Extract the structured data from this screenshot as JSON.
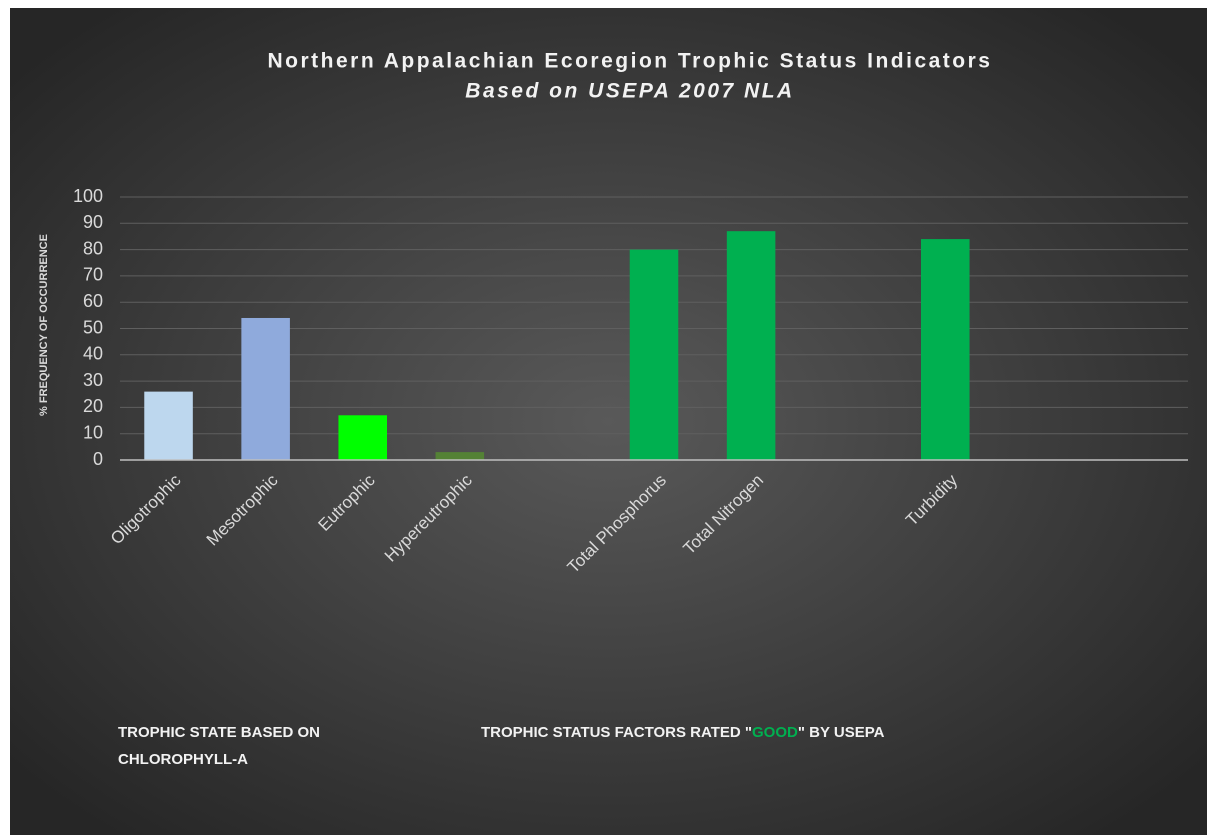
{
  "chart_data": {
    "type": "bar",
    "title": "Northern Appalachian Ecoregion Trophic Status Indicators",
    "subtitle": "Based on USEPA 2007 NLA",
    "y_label": "% FREQUENCY OF OCCURRENCE",
    "categories": [
      "Oligotrophic",
      "Mesotrophic",
      "Eutrophic",
      "Hypereutrophic",
      null,
      "Total Phosphorus",
      "Total Nitrogen",
      null,
      "Turbidity",
      null,
      null
    ],
    "values": [
      26,
      54,
      17,
      3,
      null,
      80,
      87,
      null,
      84,
      null,
      null
    ],
    "colors": [
      "#bdd7ee",
      "#8faadc",
      "#00ff00",
      "#548235",
      null,
      "#00b050",
      "#00b050",
      null,
      "#00b050",
      null,
      null
    ],
    "ylim": [
      0,
      100
    ],
    "yticks": [
      0,
      10,
      20,
      30,
      40,
      50,
      60,
      70,
      80,
      90,
      100
    ],
    "grid": true,
    "annotations": [
      {
        "lines": [
          "TROPHIC STATE BASED ON",
          "CHLOROPHYLL-A"
        ]
      },
      {
        "parts": [
          "TROPHIC STATUS FACTORS RATED \"",
          "GOOD",
          "\" BY USEPA"
        ],
        "highlight_color": "#00b050"
      }
    ]
  }
}
